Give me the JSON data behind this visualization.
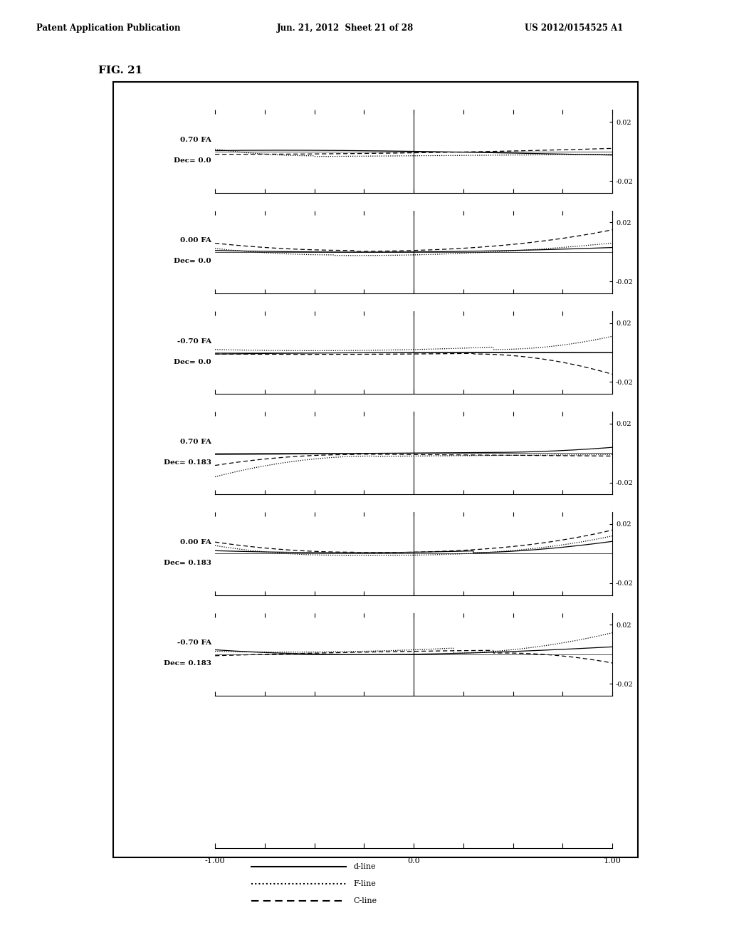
{
  "title": "FIG. 21",
  "header_left": "Patent Application Publication",
  "header_mid": "Jun. 21, 2012  Sheet 21 of 28",
  "header_right": "US 2012/0154525 A1",
  "subplots": [
    {
      "label1": "0.70 FA",
      "label2": "Dec= 0.0",
      "fa": 0.7,
      "dec": 0.0
    },
    {
      "label1": "0.00 FA",
      "label2": "Dec= 0.0",
      "fa": 0.0,
      "dec": 0.0
    },
    {
      "label1": "-0.70 FA",
      "label2": "Dec= 0.0",
      "fa": -0.7,
      "dec": 0.0
    },
    {
      "label1": "0.70 FA",
      "label2": "Dec= 0.183",
      "fa": 0.7,
      "dec": 0.183
    },
    {
      "label1": "0.00 FA",
      "label2": "Dec= 0.183",
      "fa": 0.0,
      "dec": 0.183
    },
    {
      "label1": "-0.70 FA",
      "label2": "Dec= 0.183",
      "fa": -0.7,
      "dec": 0.183
    }
  ],
  "legend_labels": [
    "d-line",
    "F-line",
    "C-line"
  ],
  "background_color": "#ffffff",
  "line_color": "#000000"
}
